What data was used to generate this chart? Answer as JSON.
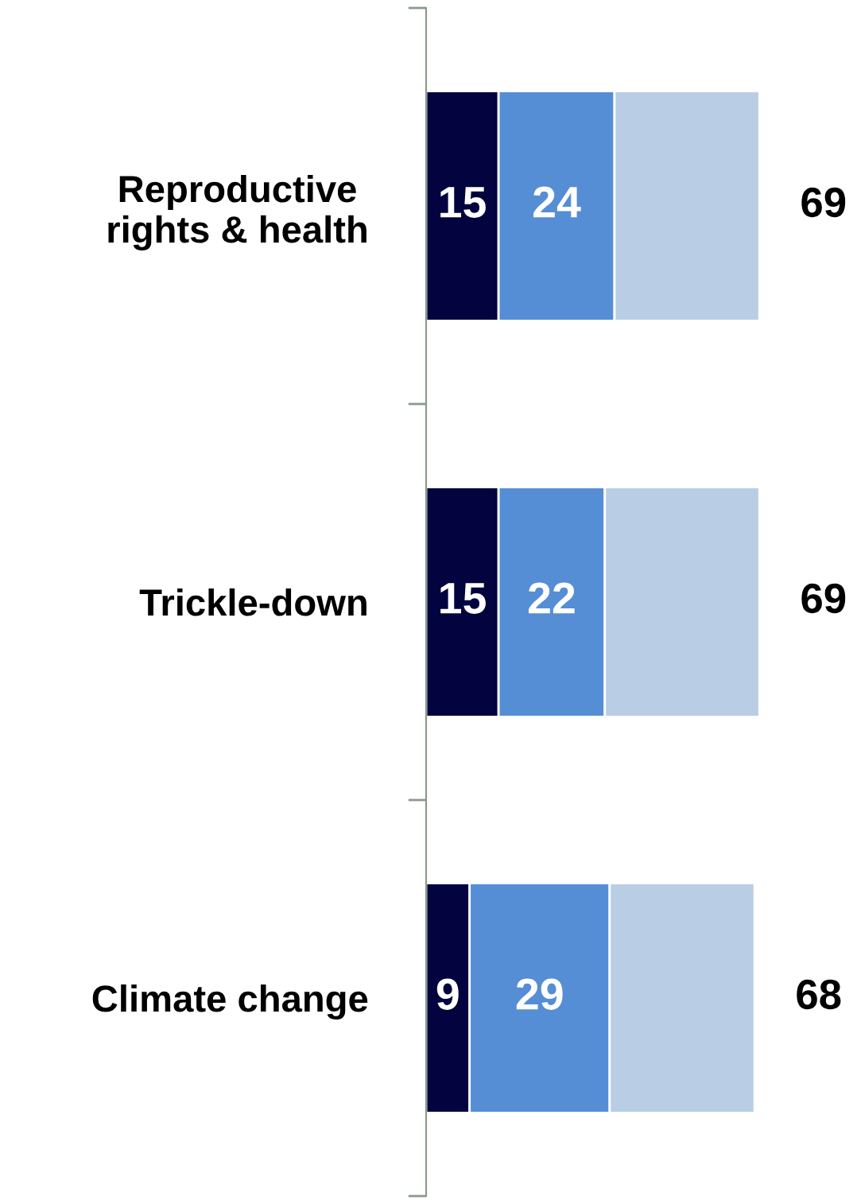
{
  "chart_data": {
    "type": "bar",
    "orientation": "horizontal",
    "stacked": true,
    "categories": [
      "Reproductive\nrights & health",
      "Trickle-down",
      "Climate change"
    ],
    "series": [
      {
        "color": "#03033f",
        "values": [
          15,
          15,
          9
        ],
        "value_labels": [
          "15",
          "15",
          "9"
        ]
      },
      {
        "color": "#558ed5",
        "values": [
          24,
          22,
          29
        ],
        "value_labels": [
          "24",
          "22",
          "29"
        ]
      },
      {
        "color": "#b9cde5",
        "values": [
          30,
          32,
          30
        ],
        "value_labels": [
          null,
          null,
          null
        ]
      }
    ],
    "totals": [
      "69",
      "69",
      "68"
    ],
    "grid": false,
    "legend": false
  }
}
